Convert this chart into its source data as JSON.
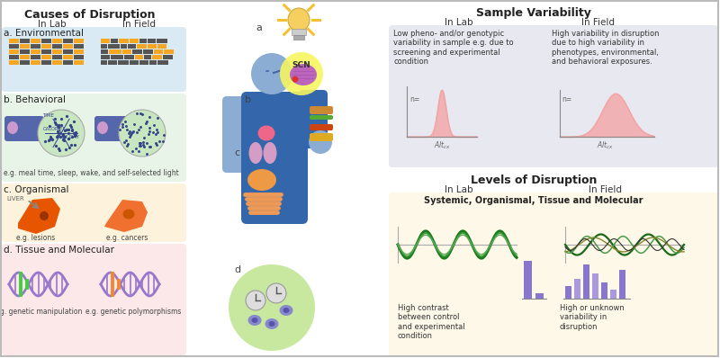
{
  "fig_width": 8.0,
  "fig_height": 3.98,
  "bg_color": "#ffffff",
  "title_left": "Causes of Disruption",
  "title_right_top": "Sample Variability",
  "title_right_bot": "Levels of Disruption",
  "in_lab": "In Lab",
  "in_field": "In Field",
  "section_a": "a. Environmental",
  "section_b": "b. Behavioral",
  "section_c": "c. Organismal",
  "section_d": "d. Tissue and Molecular",
  "env_bg": "#daeaf4",
  "beh_bg": "#e8f4e8",
  "org_bg": "#fdf3dc",
  "mol_bg": "#fce8e8",
  "sample_bg": "#e8e8f0",
  "levels_bg": "#fdf8e8",
  "orange": "#f5a623",
  "dark": "#333333",
  "gray": "#888888",
  "purple": "#8b6db5",
  "green_dark": "#1a7a1a",
  "green_light": "#5aaa5a",
  "pink": "#f4a0a0",
  "blue_person": "#8fb0d4",
  "scn_yellow": "#f5f0a0",
  "caption_beh": "e.g. meal time, sleep, wake, and self-selected light",
  "caption_org_left": "e.g. lesions",
  "caption_org_right": "e.g. cancers",
  "caption_mol_left": "e.g. genetic manipulation",
  "caption_mol_right": "e.g. genetic polymorphisms",
  "text_lab_low": "Low pheno- and/or genotypic\nvariability in sample e.g. due to\nscreening and experimental\ncondition",
  "text_field_high": "High variability in disruption\ndue to high variability in\nphenotypes, environmental,\nand behavioral exposures.",
  "text_level_lab": "High contrast\nbetween control\nand experimental\ncondition",
  "text_level_field": "High or unknown\nvariability in\ndisruption",
  "text_systemic": "Systemic, Organismal, Tissue and Molecular",
  "scn_label": "SCN"
}
